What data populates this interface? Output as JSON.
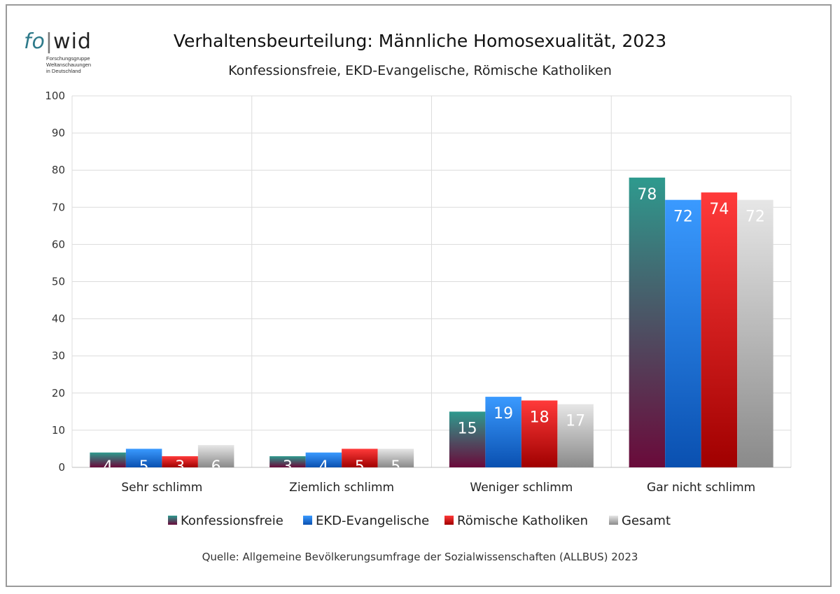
{
  "logo": {
    "fo": "fo",
    "wid": "wid",
    "subtitle": "Forschungsgruppe\nWeltanschauungen\nin Deutschland"
  },
  "title": "Verhaltensbeurteilung: Männliche Homosexualität, 2023",
  "subtitle": "Konfessionsfreie, EKD-Evangelische, Römische Katholiken",
  "source": "Quelle: Allgemeine Bevölkerungsumfrage der Sozialwissenschaften (ALLBUS) 2023",
  "chart_data": {
    "type": "bar",
    "categories": [
      "Sehr schlimm",
      "Ziemlich schlimm",
      "Weniger schlimm",
      "Gar nicht schlimm"
    ],
    "series": [
      {
        "name": "Konfessionsfreie",
        "values": [
          4,
          3,
          15,
          78
        ],
        "color_top": "#2e9a8e",
        "color_bottom": "#6a0a3a"
      },
      {
        "name": "EKD-Evangelische",
        "values": [
          5,
          4,
          19,
          72
        ],
        "color_top": "#3a9aff",
        "color_bottom": "#0a50b0"
      },
      {
        "name": "Römische Katholiken",
        "values": [
          3,
          5,
          18,
          74
        ],
        "color_top": "#ff3a3a",
        "color_bottom": "#a00000"
      },
      {
        "name": "Gesamt",
        "values": [
          6,
          5,
          17,
          72
        ],
        "color_top": "#e6e6e6",
        "color_bottom": "#8a8a8a"
      }
    ],
    "ylim": [
      0,
      100
    ],
    "yticks": [
      0,
      10,
      20,
      30,
      40,
      50,
      60,
      70,
      80,
      90,
      100
    ],
    "grid": true,
    "legend": "bottom",
    "xlabel": "",
    "ylabel": ""
  }
}
